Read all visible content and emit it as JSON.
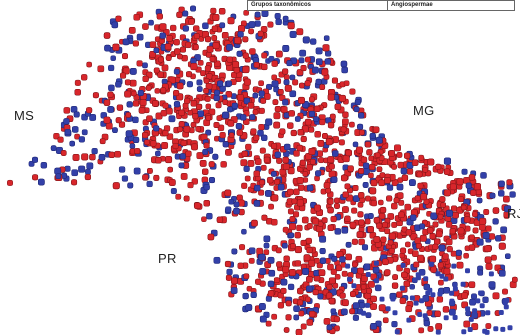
{
  "header_table": {
    "label": "Grupos taxonômicos",
    "value": "Angiospermae"
  },
  "state_labels": {
    "ms": "MS",
    "mg": "MG",
    "pr": "PR",
    "rj": "RJ"
  },
  "colors": {
    "record_red": "#d8262b",
    "record_blue": "#3340a8",
    "label": "#222222",
    "background": "#ffffff"
  }
}
